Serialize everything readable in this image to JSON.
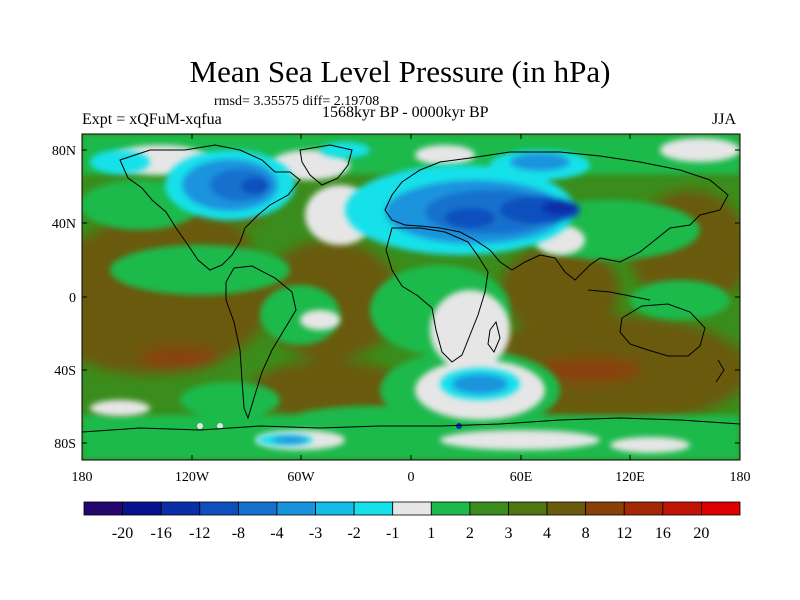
{
  "title": "Mean Sea Level Pressure (in hPa)",
  "stats": "rmsd= 3.35575 diff= 2.19708",
  "expt": "Expt = xQFuM-xqfua",
  "period": "1568kyr BP - 0000kyr BP",
  "season": "JJA",
  "lat_ticks": [
    "80N",
    "40N",
    "0",
    "40S",
    "80S"
  ],
  "lon_ticks": [
    "180",
    "120W",
    "60W",
    "0",
    "60E",
    "120E",
    "180"
  ],
  "colorbar": {
    "colors": [
      "#24076e",
      "#08128f",
      "#0a2ea8",
      "#0f4fbd",
      "#1670cd",
      "#1a93dd",
      "#15bde6",
      "#16e1ea",
      "#e6e6e6",
      "#1db94c",
      "#3a8d1c",
      "#4e7611",
      "#6a5a0b",
      "#8a4008",
      "#a42706",
      "#c01405",
      "#e00000"
    ],
    "labels": [
      "-20",
      "-16",
      "-12",
      "-8",
      "-4",
      "-3",
      "-2",
      "-1",
      "1",
      "2",
      "3",
      "4",
      "8",
      "12",
      "16",
      "20"
    ]
  }
}
